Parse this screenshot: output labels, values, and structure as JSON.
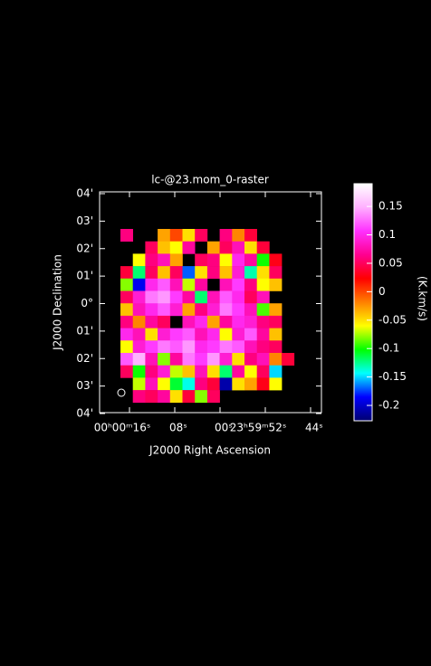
{
  "chart_data": {
    "type": "raster",
    "title": "lc-@23.mom_0-raster",
    "x_label": "J2000 Right Ascension",
    "y_label": "J2000 Declination",
    "colorbar_label": "(K.km/s)",
    "xticks": [
      "00ʰ00ᵐ16ˢ",
      "08ˢ",
      "00ˢ",
      "23ʰ59ᵐ52ˢ",
      "44ˢ"
    ],
    "yticks": [
      "04'",
      "03'",
      "02'",
      "01'",
      "0°",
      "01'",
      "02'",
      "03'",
      "04'"
    ],
    "colorbar_lim": [
      -0.227,
      0.19
    ],
    "colorbar_ticks": [
      -0.2,
      -0.15,
      -0.1,
      -0.05,
      0,
      0.05,
      0.1,
      0.15
    ],
    "colormap": [
      "#000070",
      "#0000ff",
      "#00ffff",
      "#00ff00",
      "#ffff00",
      "#ff8000",
      "#ff0000",
      "#ff0090",
      "#ff30ff",
      "#ffb0ff",
      "#ffffff"
    ],
    "values": [
      [
        0.06,
        null,
        null,
        -0.03,
        0.0,
        -0.05,
        0.05,
        null,
        0.06,
        -0.02,
        0.04,
        null,
        null,
        null
      ],
      [
        null,
        null,
        0.05,
        -0.04,
        -0.06,
        0.07,
        null,
        -0.03,
        0.05,
        0.08,
        -0.05,
        0.04,
        null,
        null
      ],
      [
        null,
        -0.06,
        0.06,
        0.08,
        -0.03,
        null,
        0.05,
        0.06,
        -0.06,
        0.1,
        0.07,
        -0.1,
        0.03,
        null
      ],
      [
        0.04,
        -0.12,
        0.05,
        -0.04,
        0.05,
        -0.17,
        -0.05,
        0.06,
        -0.04,
        0.09,
        -0.13,
        -0.05,
        0.05,
        null
      ],
      [
        -0.08,
        -0.19,
        0.1,
        0.12,
        0.08,
        -0.07,
        0.07,
        null,
        0.08,
        0.11,
        0.06,
        -0.06,
        -0.04,
        null
      ],
      [
        0.05,
        0.09,
        0.13,
        0.14,
        0.11,
        0.07,
        -0.12,
        0.08,
        0.12,
        0.1,
        0.05,
        0.08,
        null,
        null
      ],
      [
        -0.04,
        0.08,
        0.1,
        0.12,
        0.09,
        -0.03,
        0.06,
        0.09,
        0.13,
        0.11,
        0.08,
        -0.09,
        -0.03,
        null
      ],
      [
        0.06,
        -0.02,
        0.07,
        0.05,
        null,
        0.08,
        0.1,
        -0.03,
        0.07,
        0.1,
        0.09,
        0.06,
        0.05,
        null
      ],
      [
        0.1,
        0.08,
        -0.05,
        0.09,
        0.11,
        0.12,
        0.08,
        0.1,
        -0.06,
        0.09,
        0.12,
        0.07,
        -0.04,
        null
      ],
      [
        -0.06,
        0.09,
        0.11,
        0.13,
        0.12,
        0.14,
        0.1,
        0.11,
        0.13,
        0.12,
        0.08,
        0.06,
        0.05,
        null
      ],
      [
        0.12,
        0.15,
        0.08,
        -0.08,
        0.07,
        0.13,
        0.11,
        0.14,
        0.09,
        -0.05,
        0.06,
        0.08,
        -0.02,
        0.04
      ],
      [
        0.05,
        -0.1,
        0.06,
        0.09,
        -0.07,
        -0.04,
        0.08,
        -0.05,
        -0.12,
        0.07,
        -0.06,
        0.05,
        -0.15,
        null
      ],
      [
        null,
        -0.07,
        0.08,
        -0.06,
        -0.11,
        -0.14,
        0.06,
        0.04,
        -0.21,
        -0.05,
        -0.03,
        0.03,
        -0.06,
        null
      ],
      [
        null,
        0.06,
        0.05,
        0.07,
        -0.05,
        0.04,
        -0.08,
        0.05,
        null,
        null,
        null,
        null,
        null,
        null
      ]
    ]
  }
}
